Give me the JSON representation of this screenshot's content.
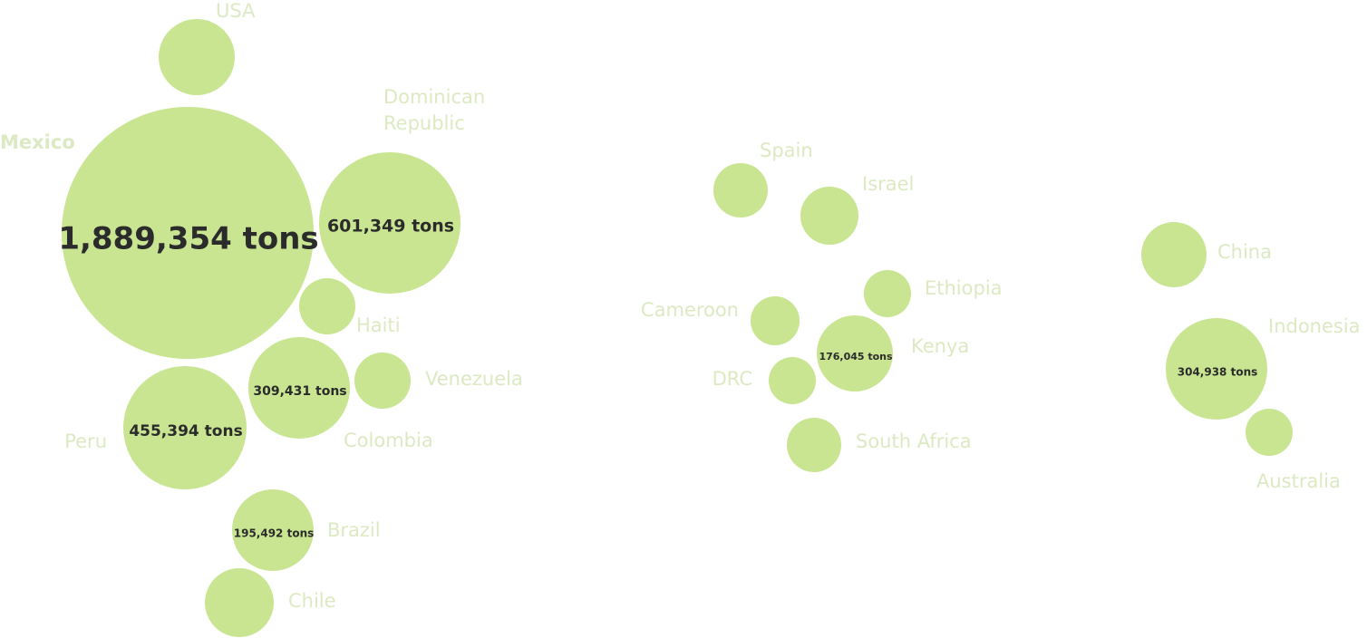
{
  "chart_data": {
    "type": "bubble",
    "title": "",
    "bubble_color": "#c9e592",
    "label_color": "#dce9c2",
    "value_text_color": "#2b2b2b",
    "unit": "tons",
    "series": [
      {
        "country": "Mexico",
        "value": 1889354,
        "value_label": "1,889,354 tons"
      },
      {
        "country": "Dominican Republic",
        "value": 601349,
        "value_label": "601,349 tons"
      },
      {
        "country": "Peru",
        "value": 455394,
        "value_label": "455,394 tons"
      },
      {
        "country": "Colombia",
        "value": 309431,
        "value_label": "309,431 tons"
      },
      {
        "country": "Indonesia",
        "value": 304938,
        "value_label": "304,938 tons"
      },
      {
        "country": "Brazil",
        "value": 195492,
        "value_label": "195,492 tons"
      },
      {
        "country": "Kenya",
        "value": 176045,
        "value_label": "176,045 tons"
      },
      {
        "country": "USA",
        "value": null,
        "value_label": ""
      },
      {
        "country": "Haiti",
        "value": null,
        "value_label": ""
      },
      {
        "country": "Venezuela",
        "value": null,
        "value_label": ""
      },
      {
        "country": "Chile",
        "value": null,
        "value_label": ""
      },
      {
        "country": "Spain",
        "value": null,
        "value_label": ""
      },
      {
        "country": "Israel",
        "value": null,
        "value_label": ""
      },
      {
        "country": "Ethiopia",
        "value": null,
        "value_label": ""
      },
      {
        "country": "Cameroon",
        "value": null,
        "value_label": ""
      },
      {
        "country": "DRC",
        "value": null,
        "value_label": ""
      },
      {
        "country": "South Africa",
        "value": null,
        "value_label": ""
      },
      {
        "country": "China",
        "value": null,
        "value_label": ""
      },
      {
        "country": "Australia",
        "value": null,
        "value_label": ""
      }
    ]
  }
}
